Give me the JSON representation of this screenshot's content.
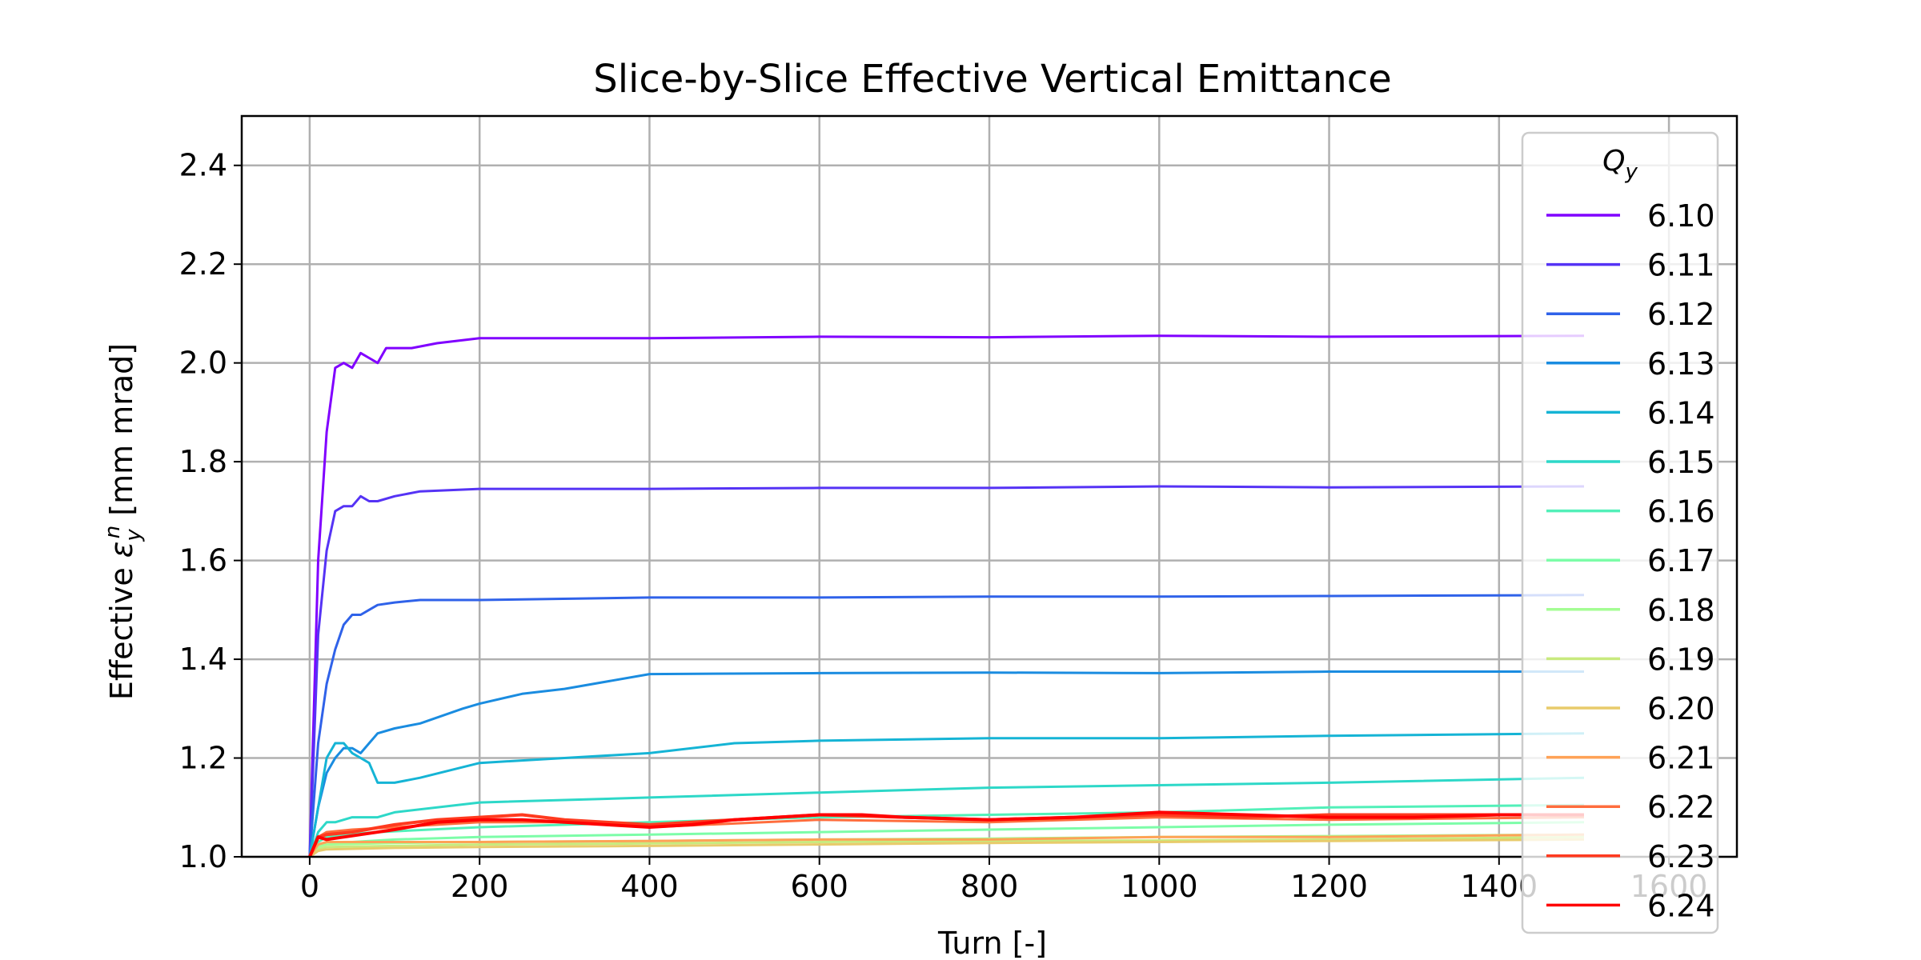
{
  "chart_data": {
    "type": "line",
    "title": "Slice-by-Slice Effective Vertical Emittance",
    "xlabel": "Turn [-]",
    "ylabel_prefix": "Effective ",
    "ylabel_symbol": "ε",
    "ylabel_sub": "y",
    "ylabel_sup": "n",
    "ylabel_suffix": " [mm mrad]",
    "xlim": [
      -80,
      1680
    ],
    "ylim": [
      1.0,
      2.5
    ],
    "xticks": [
      0,
      200,
      400,
      600,
      800,
      1000,
      1200,
      1400,
      1600
    ],
    "xtick_labels": [
      "0",
      "200",
      "400",
      "600",
      "800",
      "1000",
      "1200",
      "1400",
      "1600"
    ],
    "yticks": [
      1.0,
      1.2,
      1.4,
      1.6,
      1.8,
      2.0,
      2.2,
      2.4
    ],
    "ytick_labels": [
      "1.0",
      "1.2",
      "1.4",
      "1.6",
      "1.8",
      "2.0",
      "2.2",
      "2.4"
    ],
    "grid": true,
    "legend": {
      "title_main": "Q",
      "title_sub": "y",
      "placement": "right"
    },
    "series": [
      {
        "name": "6.10",
        "color": "#8000ff",
        "x": [
          0,
          10,
          20,
          30,
          40,
          50,
          60,
          70,
          80,
          90,
          100,
          120,
          150,
          200,
          400,
          600,
          800,
          1000,
          1200,
          1500
        ],
        "y": [
          1.0,
          1.6,
          1.86,
          1.99,
          2.0,
          1.99,
          2.02,
          2.01,
          2.0,
          2.03,
          2.03,
          2.03,
          2.04,
          2.05,
          2.05,
          2.053,
          2.052,
          2.055,
          2.053,
          2.055
        ]
      },
      {
        "name": "6.11",
        "color": "#5533f5",
        "x": [
          0,
          10,
          20,
          30,
          40,
          50,
          60,
          70,
          80,
          100,
          130,
          200,
          400,
          600,
          800,
          1000,
          1200,
          1500
        ],
        "y": [
          1.0,
          1.45,
          1.62,
          1.7,
          1.71,
          1.71,
          1.73,
          1.72,
          1.72,
          1.73,
          1.74,
          1.745,
          1.745,
          1.747,
          1.747,
          1.75,
          1.748,
          1.75
        ]
      },
      {
        "name": "6.12",
        "color": "#2f62e9",
        "x": [
          0,
          10,
          20,
          30,
          40,
          50,
          60,
          70,
          80,
          100,
          130,
          200,
          400,
          600,
          800,
          1000,
          1200,
          1500
        ],
        "y": [
          1.0,
          1.23,
          1.35,
          1.42,
          1.47,
          1.49,
          1.49,
          1.5,
          1.51,
          1.515,
          1.52,
          1.52,
          1.525,
          1.525,
          1.527,
          1.527,
          1.528,
          1.53
        ]
      },
      {
        "name": "6.13",
        "color": "#1a8ce0",
        "x": [
          0,
          10,
          20,
          30,
          40,
          50,
          60,
          70,
          80,
          100,
          130,
          180,
          200,
          250,
          300,
          400,
          600,
          800,
          1000,
          1200,
          1500
        ],
        "y": [
          1.0,
          1.1,
          1.17,
          1.2,
          1.22,
          1.22,
          1.21,
          1.23,
          1.25,
          1.26,
          1.27,
          1.3,
          1.31,
          1.33,
          1.34,
          1.37,
          1.372,
          1.373,
          1.372,
          1.375,
          1.375
        ]
      },
      {
        "name": "6.14",
        "color": "#15b4d5",
        "x": [
          0,
          10,
          20,
          30,
          40,
          50,
          60,
          70,
          80,
          100,
          130,
          200,
          300,
          400,
          500,
          600,
          800,
          1000,
          1200,
          1500
        ],
        "y": [
          1.0,
          1.1,
          1.2,
          1.23,
          1.23,
          1.21,
          1.2,
          1.19,
          1.15,
          1.15,
          1.16,
          1.19,
          1.2,
          1.21,
          1.23,
          1.235,
          1.24,
          1.24,
          1.245,
          1.25
        ]
      },
      {
        "name": "6.15",
        "color": "#2dd8c8",
        "x": [
          0,
          10,
          20,
          30,
          50,
          80,
          100,
          200,
          400,
          600,
          800,
          1000,
          1200,
          1500
        ],
        "y": [
          1.0,
          1.05,
          1.07,
          1.07,
          1.08,
          1.08,
          1.09,
          1.11,
          1.12,
          1.13,
          1.14,
          1.145,
          1.15,
          1.16
        ]
      },
      {
        "name": "6.16",
        "color": "#52f0b9",
        "x": [
          0,
          10,
          20,
          40,
          80,
          200,
          400,
          600,
          800,
          1000,
          1200,
          1500
        ],
        "y": [
          1.0,
          1.03,
          1.04,
          1.045,
          1.05,
          1.06,
          1.07,
          1.08,
          1.085,
          1.09,
          1.1,
          1.105
        ]
      },
      {
        "name": "6.17",
        "color": "#7cfda8",
        "x": [
          0,
          10,
          20,
          50,
          100,
          200,
          400,
          600,
          800,
          1000,
          1200,
          1500
        ],
        "y": [
          1.0,
          1.02,
          1.03,
          1.03,
          1.035,
          1.04,
          1.045,
          1.05,
          1.055,
          1.06,
          1.065,
          1.07
        ]
      },
      {
        "name": "6.18",
        "color": "#a4fd94",
        "x": [
          0,
          10,
          20,
          100,
          200,
          400,
          600,
          800,
          1000,
          1200,
          1500
        ],
        "y": [
          1.0,
          1.02,
          1.025,
          1.028,
          1.03,
          1.032,
          1.035,
          1.037,
          1.04,
          1.042,
          1.045
        ]
      },
      {
        "name": "6.19",
        "color": "#c8ea7e",
        "x": [
          0,
          10,
          20,
          100,
          200,
          400,
          600,
          800,
          1000,
          1200,
          1500
        ],
        "y": [
          1.0,
          1.015,
          1.02,
          1.022,
          1.025,
          1.027,
          1.03,
          1.032,
          1.033,
          1.035,
          1.04
        ]
      },
      {
        "name": "6.20",
        "color": "#e8cb6b",
        "x": [
          0,
          10,
          20,
          100,
          200,
          400,
          600,
          800,
          1000,
          1200,
          1500
        ],
        "y": [
          1.0,
          1.012,
          1.015,
          1.018,
          1.02,
          1.022,
          1.025,
          1.028,
          1.03,
          1.032,
          1.035
        ]
      },
      {
        "name": "6.21",
        "color": "#ffa256",
        "x": [
          0,
          10,
          20,
          100,
          200,
          400,
          600,
          800,
          1000,
          1200,
          1500
        ],
        "y": [
          1.0,
          1.025,
          1.03,
          1.03,
          1.03,
          1.032,
          1.035,
          1.035,
          1.04,
          1.04,
          1.045
        ]
      },
      {
        "name": "6.22",
        "color": "#ff6d3d",
        "x": [
          0,
          10,
          20,
          50,
          100,
          200,
          300,
          400,
          600,
          800,
          1000,
          1200,
          1500
        ],
        "y": [
          1.0,
          1.04,
          1.05,
          1.055,
          1.06,
          1.07,
          1.07,
          1.06,
          1.075,
          1.07,
          1.08,
          1.075,
          1.08
        ]
      },
      {
        "name": "6.23",
        "color": "#ff3a1f",
        "x": [
          0,
          10,
          20,
          50,
          100,
          150,
          200,
          250,
          300,
          400,
          500,
          600,
          700,
          800,
          900,
          1000,
          1100,
          1200,
          1500
        ],
        "y": [
          1.0,
          1.04,
          1.045,
          1.05,
          1.065,
          1.075,
          1.08,
          1.085,
          1.075,
          1.065,
          1.075,
          1.085,
          1.08,
          1.075,
          1.08,
          1.085,
          1.08,
          1.085,
          1.085
        ]
      },
      {
        "name": "6.24",
        "color": "#ff0000",
        "x": [
          0,
          10,
          20,
          40,
          60,
          100,
          150,
          200,
          250,
          300,
          350,
          400,
          450,
          500,
          600,
          650,
          700,
          800,
          900,
          1000,
          1100,
          1200,
          1300,
          1400,
          1500
        ],
        "y": [
          1.0,
          1.04,
          1.035,
          1.04,
          1.045,
          1.055,
          1.07,
          1.075,
          1.075,
          1.07,
          1.065,
          1.06,
          1.065,
          1.075,
          1.085,
          1.085,
          1.08,
          1.075,
          1.08,
          1.09,
          1.085,
          1.08,
          1.08,
          1.085,
          1.085
        ]
      }
    ]
  }
}
